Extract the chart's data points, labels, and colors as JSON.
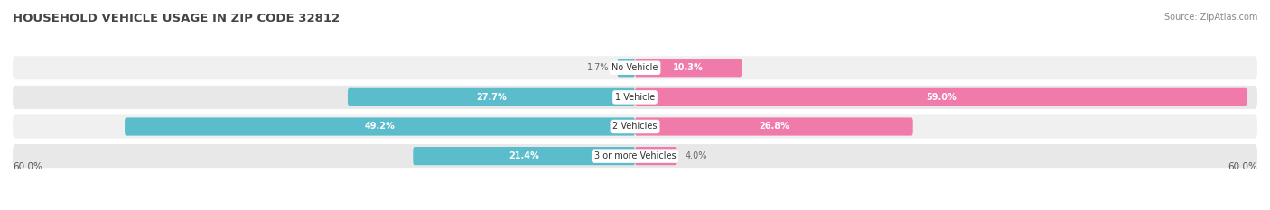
{
  "title": "HOUSEHOLD VEHICLE USAGE IN ZIP CODE 32812",
  "source": "Source: ZipAtlas.com",
  "categories": [
    "No Vehicle",
    "1 Vehicle",
    "2 Vehicles",
    "3 or more Vehicles"
  ],
  "owner_values": [
    1.7,
    27.7,
    49.2,
    21.4
  ],
  "renter_values": [
    10.3,
    59.0,
    26.8,
    4.0
  ],
  "max_val": 60.0,
  "owner_color": "#5bbccc",
  "renter_color": "#f07bab",
  "row_bg_even": "#f0f0f0",
  "row_bg_odd": "#e8e8e8",
  "title_fontsize": 9.5,
  "source_fontsize": 7,
  "value_fontsize": 7,
  "cat_fontsize": 7,
  "legend_fontsize": 7.5,
  "tick_fontsize": 7.5,
  "axis_label_val": "60.0%",
  "title_color": "#444444",
  "source_color": "#888888",
  "inside_label_color": "#ffffff",
  "outside_label_color": "#666666",
  "cat_label_color": "#333333",
  "inside_threshold": 7
}
